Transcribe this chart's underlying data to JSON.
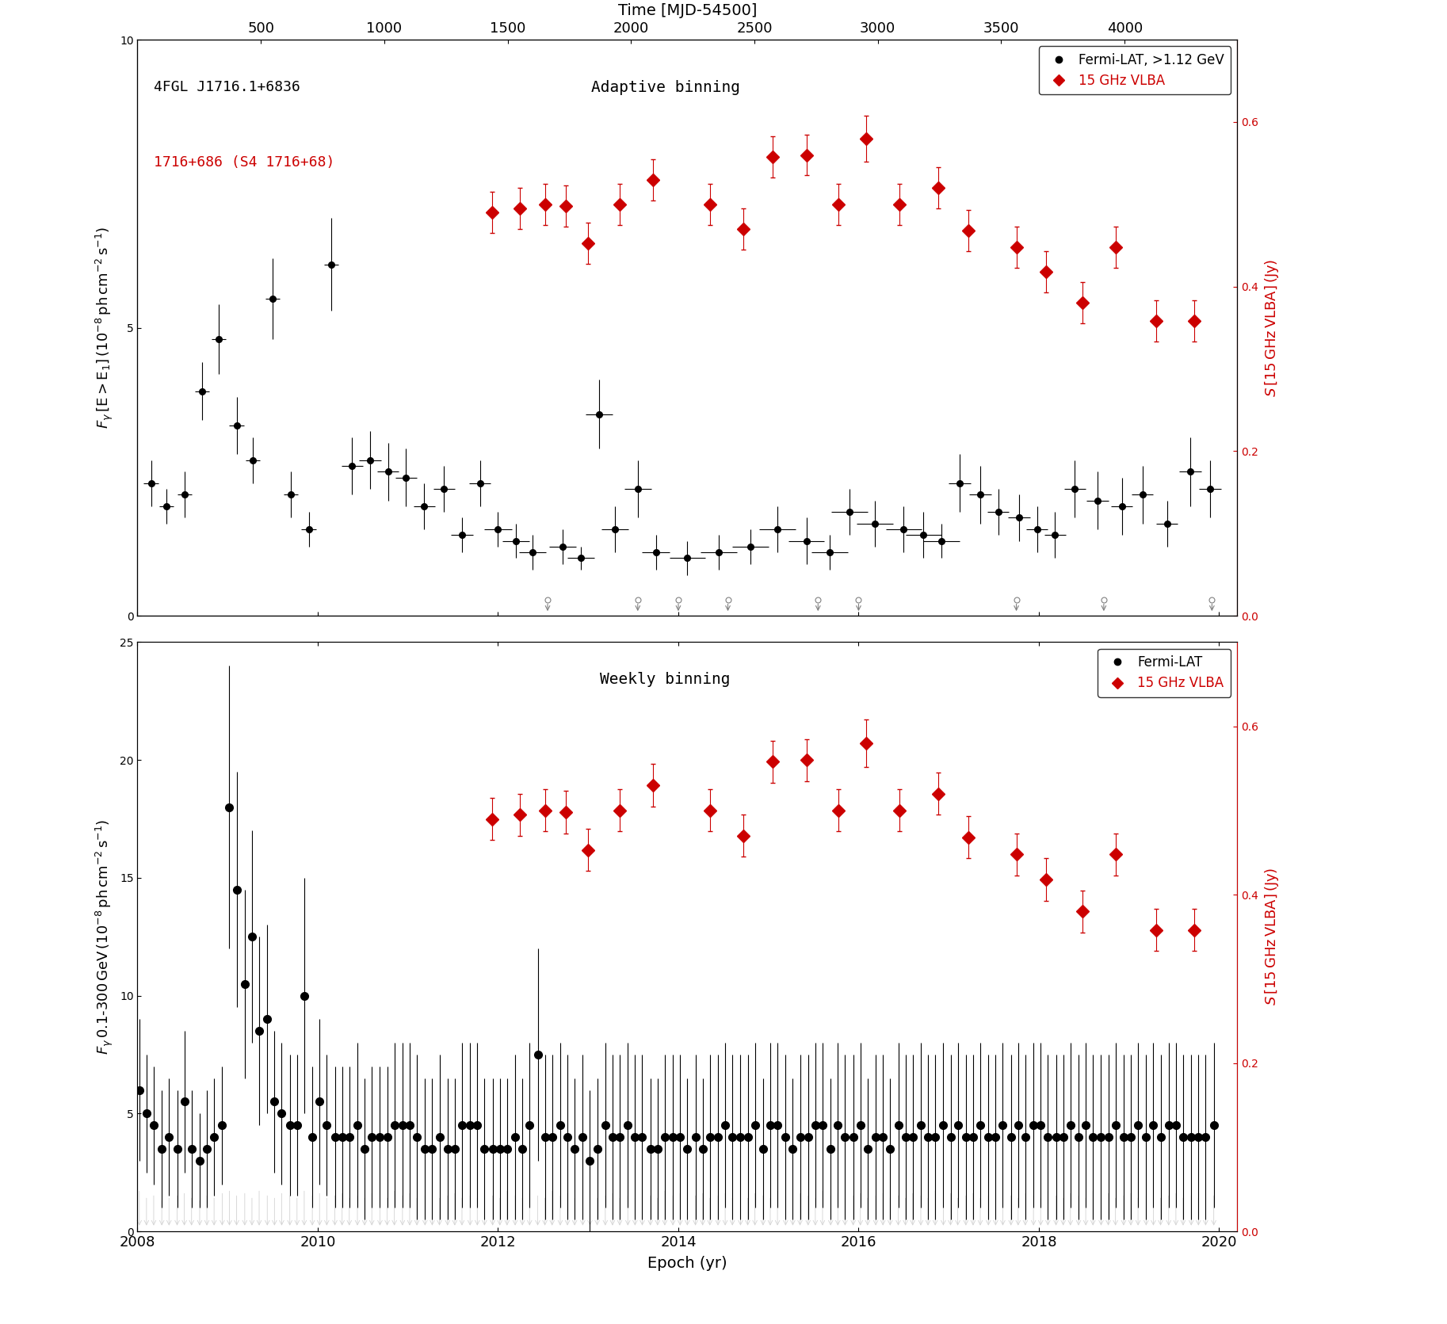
{
  "top_panel": {
    "title": "Adaptive binning",
    "ylabel_left": "F_gamma [E>E1] (10^-8 ph cm^-2 s^-1)",
    "ylabel_right": "S [15 GHz VLBA] (Jy)",
    "ylim_left": [
      0,
      10
    ],
    "ylim_right": [
      0,
      0.7
    ],
    "yticks_left": [
      0,
      5,
      10
    ],
    "yticks_right": [
      0,
      0.2,
      0.4,
      0.6
    ],
    "label_black": "Fermi-LAT, >1.12 GeV",
    "label_red": "15 GHz VLBA",
    "text1": "4FGL J1716.1+6836",
    "text2": "1716+686 (S4 1716+68)",
    "fermi_x": [
      2008.15,
      2008.32,
      2008.52,
      2008.72,
      2008.9,
      2009.1,
      2009.28,
      2009.5,
      2009.7,
      2009.9,
      2010.15,
      2010.38,
      2010.58,
      2010.78,
      2010.98,
      2011.18,
      2011.4,
      2011.6,
      2011.8,
      2012.0,
      2012.2,
      2012.38,
      2012.72,
      2012.92,
      2013.12,
      2013.3,
      2013.55,
      2013.75,
      2014.1,
      2014.45,
      2014.8,
      2015.1,
      2015.42,
      2015.68,
      2015.9,
      2016.18,
      2016.5,
      2016.72,
      2016.92,
      2017.12,
      2017.35,
      2017.55,
      2017.78,
      2017.98,
      2018.18,
      2018.4,
      2018.65,
      2018.92,
      2019.15,
      2019.42,
      2019.68,
      2019.9
    ],
    "fermi_y": [
      2.3,
      1.9,
      2.1,
      3.9,
      4.8,
      3.3,
      2.7,
      5.5,
      2.1,
      1.5,
      6.1,
      2.6,
      2.7,
      2.5,
      2.4,
      1.9,
      2.2,
      1.4,
      2.3,
      1.5,
      1.3,
      1.1,
      1.2,
      1.0,
      3.5,
      1.5,
      2.2,
      1.1,
      1.0,
      1.1,
      1.2,
      1.5,
      1.3,
      1.1,
      1.8,
      1.6,
      1.5,
      1.4,
      1.3,
      2.3,
      2.1,
      1.8,
      1.7,
      1.5,
      1.4,
      2.2,
      2.0,
      1.9,
      2.1,
      1.6,
      2.5,
      2.2
    ],
    "fermi_yerr": [
      0.4,
      0.3,
      0.4,
      0.5,
      0.6,
      0.5,
      0.4,
      0.7,
      0.4,
      0.3,
      0.8,
      0.5,
      0.5,
      0.5,
      0.5,
      0.4,
      0.4,
      0.3,
      0.4,
      0.3,
      0.3,
      0.3,
      0.3,
      0.2,
      0.6,
      0.4,
      0.5,
      0.3,
      0.3,
      0.3,
      0.3,
      0.4,
      0.4,
      0.3,
      0.4,
      0.4,
      0.4,
      0.4,
      0.3,
      0.5,
      0.5,
      0.4,
      0.4,
      0.4,
      0.4,
      0.5,
      0.5,
      0.5,
      0.5,
      0.4,
      0.6,
      0.5
    ],
    "fermi_xerr": [
      0.08,
      0.08,
      0.08,
      0.08,
      0.08,
      0.08,
      0.08,
      0.08,
      0.08,
      0.08,
      0.08,
      0.12,
      0.12,
      0.12,
      0.12,
      0.12,
      0.12,
      0.12,
      0.12,
      0.15,
      0.15,
      0.15,
      0.15,
      0.15,
      0.15,
      0.15,
      0.15,
      0.15,
      0.2,
      0.2,
      0.2,
      0.2,
      0.2,
      0.2,
      0.2,
      0.2,
      0.2,
      0.2,
      0.2,
      0.12,
      0.12,
      0.12,
      0.12,
      0.12,
      0.12,
      0.12,
      0.12,
      0.12,
      0.12,
      0.12,
      0.12,
      0.12
    ],
    "upper_x": [
      2012.55,
      2013.55,
      2014.0,
      2014.55,
      2015.55,
      2016.0,
      2017.75,
      2018.72,
      2019.92
    ],
    "upper_y": [
      0.28,
      0.28,
      0.28,
      0.28,
      0.28,
      0.28,
      0.28,
      0.28,
      0.28
    ],
    "vlba_x": [
      2011.93,
      2012.24,
      2012.52,
      2012.75,
      2013.0,
      2013.35,
      2013.72,
      2014.35,
      2014.72,
      2015.05,
      2015.42,
      2015.78,
      2016.08,
      2016.45,
      2016.88,
      2017.22,
      2017.75,
      2018.08,
      2018.48,
      2018.85,
      2019.3,
      2019.72
    ],
    "vlba_y": [
      0.49,
      0.495,
      0.5,
      0.498,
      0.453,
      0.5,
      0.53,
      0.5,
      0.47,
      0.558,
      0.56,
      0.5,
      0.58,
      0.5,
      0.52,
      0.468,
      0.448,
      0.418,
      0.38,
      0.448,
      0.358,
      0.358
    ],
    "vlba_yerr": [
      0.025,
      0.025,
      0.025,
      0.025,
      0.025,
      0.025,
      0.025,
      0.025,
      0.025,
      0.025,
      0.025,
      0.025,
      0.028,
      0.025,
      0.025,
      0.025,
      0.025,
      0.025,
      0.025,
      0.025,
      0.025,
      0.025
    ]
  },
  "bottom_panel": {
    "title": "Weekly binning",
    "ylabel_left": "F_gamma 0.1-300 GeV (10^-8 ph cm^-2 s^-1)",
    "ylabel_right": "S [15 GHz VLBA] (Jy)",
    "ylim_left": [
      0,
      25
    ],
    "ylim_right": [
      0,
      0.7
    ],
    "yticks_left": [
      0,
      5,
      10,
      15,
      20,
      25
    ],
    "yticks_right": [
      0,
      0.2,
      0.4,
      0.6
    ],
    "xlabel": "Epoch (yr)",
    "label_black": "Fermi-LAT",
    "label_red": "15 GHz VLBA",
    "fermi_x": [
      2008.02,
      2008.1,
      2008.18,
      2008.27,
      2008.35,
      2008.44,
      2008.52,
      2008.6,
      2008.69,
      2008.77,
      2008.85,
      2008.94,
      2009.02,
      2009.1,
      2009.19,
      2009.27,
      2009.35,
      2009.44,
      2009.52,
      2009.6,
      2009.69,
      2009.77,
      2009.85,
      2009.94,
      2010.02,
      2010.1,
      2010.19,
      2010.27,
      2010.35,
      2010.44,
      2010.52,
      2010.6,
      2010.69,
      2010.77,
      2010.85,
      2010.94,
      2011.02,
      2011.1,
      2011.19,
      2011.27,
      2011.35,
      2011.44,
      2011.52,
      2011.6,
      2011.69,
      2011.77,
      2011.85,
      2011.94,
      2012.02,
      2012.1,
      2012.19,
      2012.27,
      2012.35,
      2012.44,
      2012.52,
      2012.6,
      2012.69,
      2012.77,
      2012.85,
      2012.94,
      2013.02,
      2013.1,
      2013.19,
      2013.27,
      2013.35,
      2013.44,
      2013.52,
      2013.6,
      2013.69,
      2013.77,
      2013.85,
      2013.94,
      2014.02,
      2014.1,
      2014.19,
      2014.27,
      2014.35,
      2014.44,
      2014.52,
      2014.6,
      2014.69,
      2014.77,
      2014.85,
      2014.94,
      2015.02,
      2015.1,
      2015.19,
      2015.27,
      2015.35,
      2015.44,
      2015.52,
      2015.6,
      2015.69,
      2015.77,
      2015.85,
      2015.94,
      2016.02,
      2016.1,
      2016.19,
      2016.27,
      2016.35,
      2016.44,
      2016.52,
      2016.6,
      2016.69,
      2016.77,
      2016.85,
      2016.94,
      2017.02,
      2017.1,
      2017.19,
      2017.27,
      2017.35,
      2017.44,
      2017.52,
      2017.6,
      2017.69,
      2017.77,
      2017.85,
      2017.94,
      2018.02,
      2018.1,
      2018.19,
      2018.27,
      2018.35,
      2018.44,
      2018.52,
      2018.6,
      2018.69,
      2018.77,
      2018.85,
      2018.94,
      2019.02,
      2019.1,
      2019.19,
      2019.27,
      2019.35,
      2019.44,
      2019.52,
      2019.6,
      2019.69,
      2019.77,
      2019.85,
      2019.94
    ],
    "fermi_y": [
      6.0,
      5.0,
      4.5,
      3.5,
      4.0,
      3.5,
      5.5,
      3.5,
      3.0,
      3.5,
      4.0,
      4.5,
      18.0,
      14.5,
      10.5,
      12.5,
      8.5,
      9.0,
      5.5,
      5.0,
      4.5,
      4.5,
      10.0,
      4.0,
      5.5,
      4.5,
      4.0,
      4.0,
      4.0,
      4.5,
      3.5,
      4.0,
      4.0,
      4.0,
      4.5,
      4.5,
      4.5,
      4.0,
      3.5,
      3.5,
      4.0,
      3.5,
      3.5,
      4.5,
      4.5,
      4.5,
      3.5,
      3.5,
      3.5,
      3.5,
      4.0,
      3.5,
      4.5,
      7.5,
      4.0,
      4.0,
      4.5,
      4.0,
      3.5,
      4.0,
      3.0,
      3.5,
      4.5,
      4.0,
      4.0,
      4.5,
      4.0,
      4.0,
      3.5,
      3.5,
      4.0,
      4.0,
      4.0,
      3.5,
      4.0,
      3.5,
      4.0,
      4.0,
      4.5,
      4.0,
      4.0,
      4.0,
      4.5,
      3.5,
      4.5,
      4.5,
      4.0,
      3.5,
      4.0,
      4.0,
      4.5,
      4.5,
      3.5,
      4.5,
      4.0,
      4.0,
      4.5,
      3.5,
      4.0,
      4.0,
      3.5,
      4.5,
      4.0,
      4.0,
      4.5,
      4.0,
      4.0,
      4.5,
      4.0,
      4.5,
      4.0,
      4.0,
      4.5,
      4.0,
      4.0,
      4.5,
      4.0,
      4.5,
      4.0,
      4.5,
      4.5,
      4.0,
      4.0,
      4.0,
      4.5,
      4.0,
      4.5,
      4.0,
      4.0,
      4.0,
      4.5,
      4.0,
      4.0,
      4.5,
      4.0,
      4.5,
      4.0,
      4.5,
      4.5,
      4.0,
      4.0,
      4.0,
      4.0,
      4.5
    ],
    "fermi_yerr": [
      3.0,
      2.5,
      2.5,
      2.5,
      2.5,
      2.5,
      3.0,
      2.5,
      2.0,
      2.5,
      2.5,
      2.5,
      6.0,
      5.0,
      4.0,
      4.5,
      4.0,
      4.0,
      3.0,
      3.0,
      3.0,
      3.0,
      5.0,
      3.0,
      3.5,
      3.0,
      3.0,
      3.0,
      3.0,
      3.5,
      3.0,
      3.0,
      3.0,
      3.0,
      3.5,
      3.5,
      3.5,
      3.5,
      3.0,
      3.0,
      3.5,
      3.0,
      3.0,
      3.5,
      3.5,
      3.5,
      3.0,
      3.0,
      3.0,
      3.0,
      3.5,
      3.0,
      3.5,
      4.5,
      3.5,
      3.5,
      3.5,
      3.5,
      3.0,
      3.5,
      3.0,
      3.0,
      3.5,
      3.5,
      3.5,
      3.5,
      3.5,
      3.5,
      3.0,
      3.0,
      3.5,
      3.5,
      3.5,
      3.0,
      3.5,
      3.0,
      3.5,
      3.5,
      3.5,
      3.5,
      3.5,
      3.5,
      3.5,
      3.0,
      3.5,
      3.5,
      3.5,
      3.0,
      3.5,
      3.5,
      3.5,
      3.5,
      3.0,
      3.5,
      3.5,
      3.5,
      3.5,
      3.0,
      3.5,
      3.5,
      3.0,
      3.5,
      3.5,
      3.5,
      3.5,
      3.5,
      3.5,
      3.5,
      3.5,
      3.5,
      3.5,
      3.5,
      3.5,
      3.5,
      3.5,
      3.5,
      3.5,
      3.5,
      3.5,
      3.5,
      3.5,
      3.5,
      3.5,
      3.5,
      3.5,
      3.5,
      3.5,
      3.5,
      3.5,
      3.5,
      3.5,
      3.5,
      3.5,
      3.5,
      3.5,
      3.5,
      3.5,
      3.5,
      3.5,
      3.5,
      3.5,
      3.5,
      3.5,
      3.5
    ],
    "vlba_x": [
      2011.93,
      2012.24,
      2012.52,
      2012.75,
      2013.0,
      2013.35,
      2013.72,
      2014.35,
      2014.72,
      2015.05,
      2015.42,
      2015.78,
      2016.08,
      2016.45,
      2016.88,
      2017.22,
      2017.75,
      2018.08,
      2018.48,
      2018.85,
      2019.3,
      2019.72
    ],
    "vlba_y": [
      0.49,
      0.495,
      0.5,
      0.498,
      0.453,
      0.5,
      0.53,
      0.5,
      0.47,
      0.558,
      0.56,
      0.5,
      0.58,
      0.5,
      0.52,
      0.468,
      0.448,
      0.418,
      0.38,
      0.448,
      0.358,
      0.358
    ],
    "vlba_yerr": [
      0.025,
      0.025,
      0.025,
      0.025,
      0.025,
      0.025,
      0.025,
      0.025,
      0.025,
      0.025,
      0.025,
      0.025,
      0.028,
      0.025,
      0.025,
      0.025,
      0.025,
      0.025,
      0.025,
      0.025,
      0.025,
      0.025
    ],
    "upper_x_bot": [
      2008.02,
      2008.1,
      2008.18,
      2008.27,
      2008.35,
      2008.44,
      2008.52,
      2008.6,
      2008.69,
      2008.77,
      2008.85,
      2008.94,
      2009.02,
      2009.1,
      2009.19,
      2009.27,
      2009.35,
      2009.44,
      2009.52,
      2009.6,
      2009.69,
      2009.77,
      2009.85,
      2009.94,
      2010.02,
      2010.1,
      2010.19,
      2010.27,
      2010.35,
      2010.44,
      2010.52,
      2010.6,
      2010.69,
      2010.77,
      2010.85,
      2010.94,
      2011.02,
      2011.1,
      2011.19,
      2011.27,
      2011.35,
      2011.44,
      2011.52,
      2011.6,
      2011.69,
      2011.77,
      2011.85,
      2011.94,
      2012.02,
      2012.1,
      2012.19,
      2012.27,
      2012.35,
      2012.44,
      2012.52,
      2012.6,
      2012.69,
      2012.77,
      2012.85,
      2012.94,
      2013.02,
      2013.1,
      2013.19,
      2013.27,
      2013.35,
      2013.44,
      2013.52,
      2013.6,
      2013.69,
      2013.77,
      2013.85,
      2013.94,
      2014.02,
      2014.1,
      2014.19,
      2014.27,
      2014.35,
      2014.44,
      2014.52,
      2014.6,
      2014.69,
      2014.77,
      2014.85,
      2014.94,
      2015.02,
      2015.1,
      2015.19,
      2015.27,
      2015.35,
      2015.44,
      2015.52,
      2015.6,
      2015.69,
      2015.77,
      2015.85,
      2015.94,
      2016.02,
      2016.1,
      2016.19,
      2016.27,
      2016.35,
      2016.44,
      2016.52,
      2016.6,
      2016.69,
      2016.77,
      2016.85,
      2016.94,
      2017.02,
      2017.1,
      2017.19,
      2017.27,
      2017.35,
      2017.44,
      2017.52,
      2017.6,
      2017.69,
      2017.77,
      2017.85,
      2017.94,
      2018.02,
      2018.1,
      2018.19,
      2018.27,
      2018.35,
      2018.44,
      2018.52,
      2018.6,
      2018.69,
      2018.77,
      2018.85,
      2018.94,
      2019.02,
      2019.1,
      2019.19,
      2019.27,
      2019.35,
      2019.44,
      2019.52,
      2019.6,
      2019.69,
      2019.77,
      2019.85,
      2019.94
    ],
    "upper_y_bot": [
      1.8,
      1.5,
      1.6,
      1.4,
      1.5,
      1.6,
      1.7,
      1.5,
      1.4,
      1.6,
      1.5,
      1.7,
      1.8,
      1.6,
      1.7,
      1.5,
      1.8,
      1.6,
      1.5,
      1.7,
      1.6,
      1.5,
      1.8,
      1.6,
      1.7,
      1.5,
      1.6,
      1.7,
      1.5,
      1.6,
      1.5,
      1.7,
      1.6,
      1.5,
      1.8,
      1.6,
      1.7,
      1.5,
      1.6,
      1.7,
      1.5,
      1.6,
      1.7,
      1.5,
      1.6,
      1.5,
      1.7,
      1.6,
      1.5,
      1.8,
      1.6,
      1.5,
      1.7,
      1.6,
      1.5,
      1.8,
      1.6,
      1.7,
      1.5,
      1.6,
      1.7,
      1.5,
      1.6,
      1.7,
      1.5,
      1.6,
      1.5,
      1.7,
      1.6,
      1.5,
      1.8,
      1.6,
      1.7,
      1.5,
      1.6,
      1.7,
      1.5,
      1.6,
      1.7,
      1.5,
      1.6,
      1.5,
      1.7,
      1.6,
      1.5,
      1.8,
      1.6,
      1.5,
      1.7,
      1.6,
      1.5,
      1.8,
      1.6,
      1.7,
      1.5,
      1.6,
      1.7,
      1.5,
      1.6,
      1.7,
      1.5,
      1.6,
      1.5,
      1.7,
      1.6,
      1.5,
      1.8,
      1.6,
      1.7,
      1.5,
      1.6,
      1.7,
      1.5,
      1.6,
      1.7,
      1.5,
      1.6,
      1.5,
      1.7,
      1.6,
      1.5,
      1.8,
      1.6,
      1.5,
      1.7,
      1.6,
      1.5,
      1.8,
      1.6,
      1.7,
      1.5,
      1.6,
      1.7,
      1.5,
      1.6,
      1.7,
      1.5,
      1.6,
      1.7,
      1.5,
      1.6,
      1.5,
      1.7,
      1.6
    ]
  },
  "xlim": [
    2008.0,
    2020.2
  ],
  "xticks_bottom": [
    2008,
    2010,
    2012,
    2014,
    2016,
    2018,
    2020
  ],
  "xticks_top_mjd": [
    500,
    1000,
    1500,
    2000,
    2500,
    3000,
    3500,
    4000
  ],
  "epoch_to_mjd_slope": 365.25,
  "epoch_ref": 2008.0,
  "colors": {
    "fermi_black": "#000000",
    "vlba_red": "#cc0000",
    "upper_gray": "#aaaaaa",
    "background": "#ffffff"
  }
}
